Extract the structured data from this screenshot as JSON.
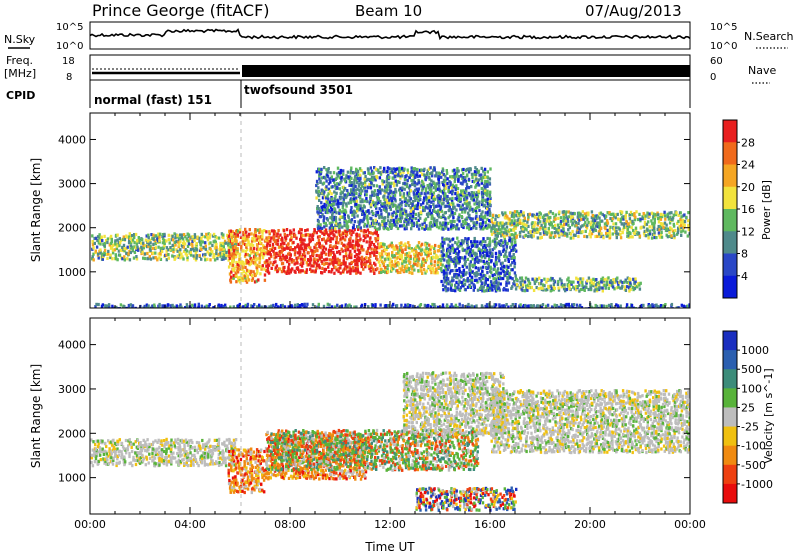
{
  "header": {
    "station": "Prince George (fitACF)",
    "beam": "Beam 10",
    "date": "07/Aug/2013"
  },
  "noise_panel": {
    "left_label": "N.Sky",
    "right_label": "N.Search",
    "left_ticks": [
      "10^5",
      "10^0"
    ],
    "right_ticks": [
      "10^5",
      "10^0"
    ]
  },
  "freq_panel": {
    "left_label_line1": "Freq.",
    "left_label_line2": "[MHz]",
    "right_label": "Nave",
    "left_ticks": [
      "18",
      "8"
    ],
    "right_ticks": [
      "60",
      "0"
    ]
  },
  "cpid_panel": {
    "label": "CPID",
    "modes": [
      {
        "name": "normal (fast) 151",
        "start_hour": 0,
        "end_hour": 6
      },
      {
        "name": "twofsound 3501",
        "start_hour": 6,
        "end_hour": 24
      }
    ]
  },
  "chart_data": [
    {
      "type": "heatmap",
      "name": "power",
      "ylabel": "Slant Range [km]",
      "xlim": [
        0,
        24
      ],
      "ylim": [
        180,
        4600
      ],
      "yticks": [
        "1000",
        "2000",
        "3000",
        "4000"
      ],
      "colorbar_label": "Power [dB]",
      "colorbar_ticks": [
        "4",
        "8",
        "12",
        "16",
        "20",
        "24",
        "28"
      ],
      "colorbar_colors": [
        "#0a1bd9",
        "#2a47c6",
        "#4f8a8b",
        "#5fb85f",
        "#f2e33d",
        "#f5a623",
        "#f06a1c",
        "#e81f1f"
      ],
      "echo_bands": [
        {
          "t0": 0.0,
          "t1": 5.8,
          "r0": 1300,
          "r1": 1900,
          "level": 0.45
        },
        {
          "t0": 5.5,
          "t1": 7.0,
          "r0": 800,
          "r1": 2000,
          "level": 0.7
        },
        {
          "t0": 7.0,
          "t1": 11.5,
          "r0": 1000,
          "r1": 2000,
          "level": 0.95
        },
        {
          "t0": 11.5,
          "t1": 14.0,
          "r0": 1000,
          "r1": 1700,
          "level": 0.6
        },
        {
          "t0": 9.0,
          "t1": 16.0,
          "r0": 2000,
          "r1": 3400,
          "level": 0.3
        },
        {
          "t0": 14.0,
          "t1": 17.0,
          "r0": 600,
          "r1": 1800,
          "level": 0.25
        },
        {
          "t0": 16.0,
          "t1": 24.0,
          "r0": 1800,
          "r1": 2400,
          "level": 0.45
        },
        {
          "t0": 17.0,
          "t1": 22.0,
          "r0": 600,
          "r1": 900,
          "level": 0.4
        },
        {
          "t0": 0.0,
          "t1": 24.0,
          "r0": 180,
          "r1": 300,
          "level": 0.2
        }
      ]
    },
    {
      "type": "heatmap",
      "name": "velocity",
      "ylabel": "Slant Range [km]",
      "xlabel": "Time UT",
      "xlim": [
        0,
        24
      ],
      "ylim": [
        180,
        4600
      ],
      "xticks": [
        "00:00",
        "04:00",
        "08:00",
        "12:00",
        "16:00",
        "20:00",
        "00:00"
      ],
      "yticks": [
        "1000",
        "2000",
        "3000",
        "4000"
      ],
      "colorbar_label": "Velocity [m s^-1]",
      "colorbar_ticks": [
        "1000",
        "500",
        "100",
        "25",
        "-25",
        "-100",
        "-500",
        "-1000"
      ],
      "colorbar_colors": [
        "#1a2ebf",
        "#2b5fb0",
        "#3c8c7a",
        "#58b33a",
        "#bdbdbd",
        "#f0c010",
        "#f08a10",
        "#ee4010",
        "#e80c0c"
      ],
      "echo_bands": [
        {
          "t0": 0.0,
          "t1": 5.8,
          "r0": 1300,
          "r1": 1900,
          "vel": "ground"
        },
        {
          "t0": 5.5,
          "t1": 7.0,
          "r0": 700,
          "r1": 1700,
          "vel": "away"
        },
        {
          "t0": 7.0,
          "t1": 11.0,
          "r0": 1000,
          "r1": 2000,
          "vel": "away"
        },
        {
          "t0": 7.0,
          "t1": 15.5,
          "r0": 1200,
          "r1": 2100,
          "vel": "toward"
        },
        {
          "t0": 12.5,
          "t1": 16.5,
          "r0": 2000,
          "r1": 3400,
          "vel": "ground"
        },
        {
          "t0": 16.0,
          "t1": 24.0,
          "r0": 1600,
          "r1": 3000,
          "vel": "ground"
        },
        {
          "t0": 13.0,
          "t1": 17.0,
          "r0": 300,
          "r1": 800,
          "vel": "mixed"
        }
      ]
    }
  ]
}
